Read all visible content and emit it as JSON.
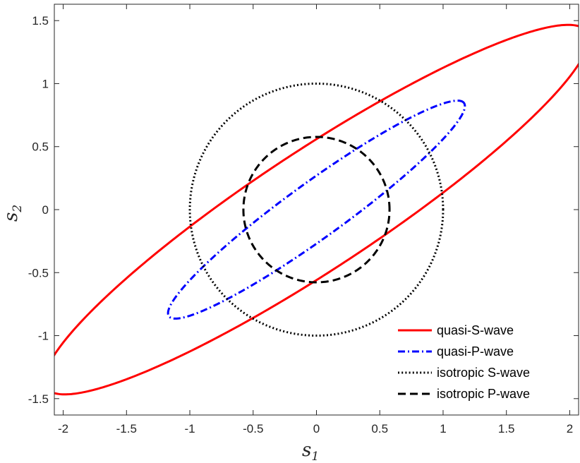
{
  "chart_data": {
    "type": "line",
    "xlabel": {
      "base": "s",
      "sub": "1"
    },
    "ylabel": {
      "base": "s",
      "sub": "2"
    },
    "xlim": [
      -2.07,
      2.07
    ],
    "ylim": [
      -1.63,
      1.63
    ],
    "x_ticks": [
      -2,
      -1.5,
      -1,
      -0.5,
      0,
      0.5,
      1,
      1.5,
      2
    ],
    "x_tick_labels": [
      "-2",
      "-1.5",
      "-1",
      "-0.5",
      "0",
      "0.5",
      "1",
      "1.5",
      "2"
    ],
    "y_ticks": [
      -1.5,
      -1,
      -0.5,
      0,
      0.5,
      1,
      1.5
    ],
    "y_tick_labels": [
      "-1.5",
      "-1",
      "-0.5",
      "0",
      "0.5",
      "1",
      "1.5"
    ],
    "grid": false,
    "legend_position": "bottom-right",
    "series": [
      {
        "name": "quasi-S-wave",
        "shape": "ellipse",
        "center": [
          0,
          0
        ],
        "semi_major": 2.56,
        "semi_minor": 0.47,
        "angle_deg": 33.5,
        "color": "#ff0000",
        "style": "solid"
      },
      {
        "name": "quasi-P-wave",
        "shape": "ellipse",
        "center": [
          0,
          0
        ],
        "semi_major": 1.44,
        "semi_minor": 0.22,
        "angle_deg": 36,
        "color": "#0000ff",
        "style": "dashdot"
      },
      {
        "name": "isotropic S-wave",
        "shape": "circle",
        "center": [
          0,
          0
        ],
        "radius": 1.0,
        "color": "#000000",
        "style": "dotted"
      },
      {
        "name": "isotropic P-wave",
        "shape": "circle",
        "center": [
          0,
          0
        ],
        "radius": 0.577,
        "color": "#000000",
        "style": "dashed"
      }
    ]
  }
}
